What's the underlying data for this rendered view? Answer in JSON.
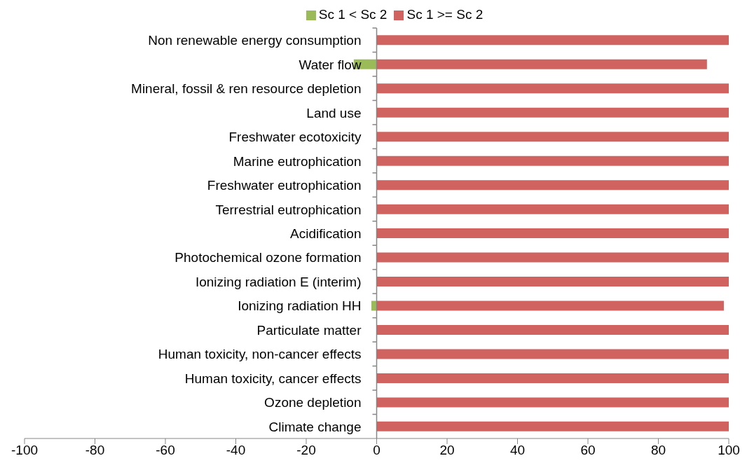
{
  "chart_data": {
    "type": "bar",
    "orientation": "horizontal",
    "stacked": true,
    "categories": [
      "Non renewable energy consumption",
      "Water flow",
      "Mineral, fossil & ren resource depletion",
      "Land use",
      "Freshwater ecotoxicity",
      "Marine eutrophication",
      "Freshwater eutrophication",
      "Terrestrial eutrophication",
      "Acidification",
      "Photochemical ozone formation",
      "Ionizing radiation E (interim)",
      "Ionizing radiation HH",
      "Particulate matter",
      "Human toxicity, non-cancer effects",
      "Human toxicity, cancer effects",
      "Ozone depletion",
      "Climate change"
    ],
    "series": [
      {
        "name": "Sc 1 < Sc 2",
        "color": "#9bbb59",
        "values": [
          null,
          -6.5,
          null,
          null,
          null,
          null,
          null,
          null,
          null,
          null,
          null,
          -1.5,
          null,
          null,
          null,
          null,
          null
        ]
      },
      {
        "name": "Sc 1 >= Sc 2",
        "color": "#d0635f",
        "values": [
          100,
          93.8,
          100,
          100,
          100,
          100,
          100,
          100,
          100,
          100,
          100,
          98.6,
          100,
          100,
          100,
          100,
          100
        ]
      }
    ],
    "xlim": [
      -100,
      100
    ],
    "xticks": [
      -100,
      -80,
      -60,
      -40,
      -20,
      0,
      20,
      40,
      60,
      80,
      100
    ],
    "legend": "top"
  }
}
